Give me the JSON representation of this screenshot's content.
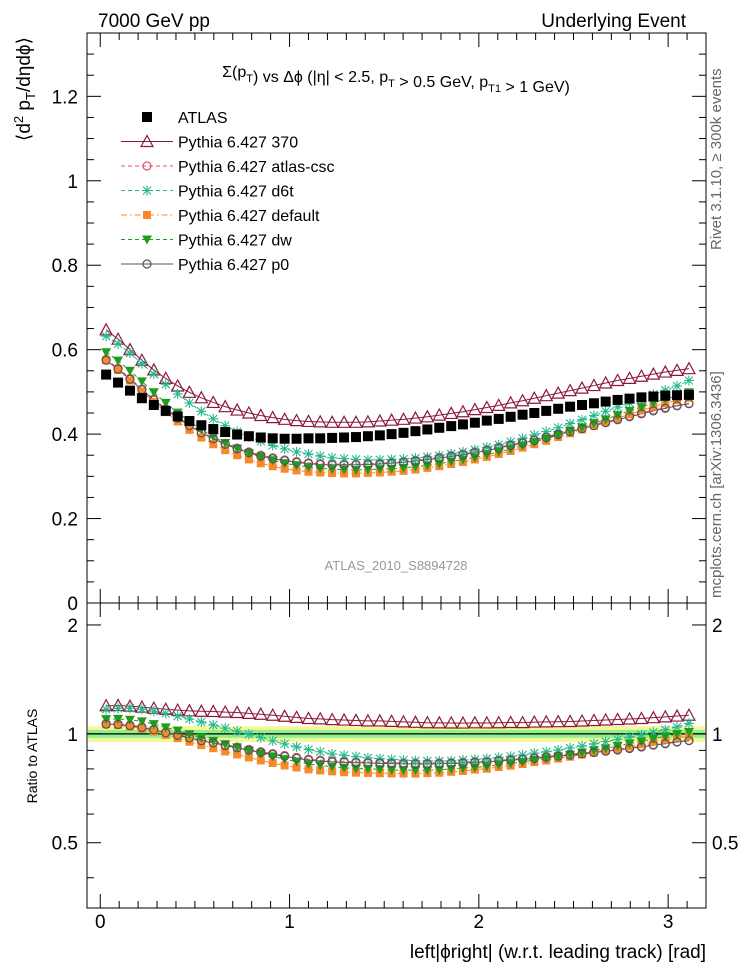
{
  "header": {
    "left": "7000 GeV pp",
    "right": "Underlying Event"
  },
  "side": {
    "rivet": "Rivet 3.1.10, ≥ 300k events",
    "mcplots": "mcplots.cern.ch [arXiv:1306.3436]"
  },
  "chart_data": {
    "type": "scatter",
    "title": "Σ(p_T) vs Δϕ (|η| < 2.5, p_T > 0.5 GeV, p_T1 > 1 GeV)",
    "analysis": "ATLAS_2010_S8894728",
    "xlabel": "left|ϕright| (w.r.t. leading track) [rad]",
    "ylabel": "⟨d² p_T/dηdϕ⟩",
    "ratio_ylabel": "Ratio to ATLAS",
    "xlim": [
      -0.07,
      3.2
    ],
    "ylim": [
      0,
      1.35
    ],
    "ratio_ylim": [
      0.33,
      2.3
    ],
    "x_ticks": [
      "0",
      "1",
      "2",
      "3"
    ],
    "y_ticks": [
      "0",
      "0.2",
      "0.4",
      "0.6",
      "0.8",
      "1",
      "1.2"
    ],
    "ratio_ticks": [
      "0.5",
      "1",
      "2"
    ],
    "legend_position": "top-left",
    "x": [
      0.031,
      0.094,
      0.157,
      0.22,
      0.283,
      0.346,
      0.409,
      0.471,
      0.534,
      0.597,
      0.66,
      0.723,
      0.785,
      0.848,
      0.911,
      0.974,
      1.037,
      1.1,
      1.162,
      1.225,
      1.288,
      1.351,
      1.414,
      1.477,
      1.539,
      1.602,
      1.665,
      1.728,
      1.791,
      1.854,
      1.916,
      1.979,
      2.042,
      2.105,
      2.168,
      2.231,
      2.293,
      2.356,
      2.419,
      2.482,
      2.545,
      2.608,
      2.67,
      2.733,
      2.796,
      2.859,
      2.922,
      2.985,
      3.047,
      3.11
    ],
    "series": [
      {
        "name": "ATLAS",
        "color": "#000000",
        "marker": "square",
        "line": "none",
        "values": [
          0.541,
          0.522,
          0.503,
          0.485,
          0.469,
          0.455,
          0.442,
          0.431,
          0.421,
          0.412,
          0.405,
          0.399,
          0.395,
          0.392,
          0.39,
          0.389,
          0.389,
          0.39,
          0.39,
          0.391,
          0.392,
          0.393,
          0.395,
          0.397,
          0.4,
          0.403,
          0.407,
          0.411,
          0.415,
          0.419,
          0.423,
          0.427,
          0.432,
          0.436,
          0.441,
          0.446,
          0.45,
          0.455,
          0.46,
          0.465,
          0.469,
          0.473,
          0.477,
          0.481,
          0.484,
          0.487,
          0.489,
          0.491,
          0.492,
          0.493
        ]
      },
      {
        "name": "Pythia 6.427 370",
        "color": "#8b1a3a",
        "marker": "triangle-open",
        "line": "solid",
        "values": [
          0.647,
          0.625,
          0.6,
          0.575,
          0.552,
          0.532,
          0.514,
          0.499,
          0.486,
          0.475,
          0.465,
          0.457,
          0.45,
          0.444,
          0.439,
          0.435,
          0.432,
          0.43,
          0.429,
          0.428,
          0.428,
          0.428,
          0.429,
          0.431,
          0.433,
          0.435,
          0.438,
          0.441,
          0.445,
          0.449,
          0.453,
          0.458,
          0.463,
          0.468,
          0.474,
          0.479,
          0.485,
          0.491,
          0.497,
          0.503,
          0.509,
          0.515,
          0.521,
          0.527,
          0.532,
          0.537,
          0.542,
          0.547,
          0.551,
          0.555
        ]
      },
      {
        "name": "Pythia 6.427 atlas-csc",
        "color": "#e8506e",
        "marker": "circle-open",
        "line": "dashed",
        "values": [
          0.577,
          0.556,
          0.532,
          0.507,
          0.483,
          0.46,
          0.44,
          0.422,
          0.405,
          0.391,
          0.378,
          0.367,
          0.358,
          0.35,
          0.344,
          0.339,
          0.335,
          0.332,
          0.33,
          0.329,
          0.329,
          0.329,
          0.33,
          0.331,
          0.333,
          0.335,
          0.338,
          0.341,
          0.345,
          0.349,
          0.353,
          0.358,
          0.363,
          0.369,
          0.375,
          0.381,
          0.387,
          0.394,
          0.401,
          0.408,
          0.415,
          0.422,
          0.429,
          0.436,
          0.443,
          0.45,
          0.457,
          0.463,
          0.468,
          0.473
        ]
      },
      {
        "name": "Pythia 6.427 d6t",
        "color": "#26b88e",
        "marker": "star",
        "line": "dashed",
        "values": [
          0.632,
          0.614,
          0.592,
          0.567,
          0.542,
          0.518,
          0.495,
          0.474,
          0.454,
          0.436,
          0.42,
          0.406,
          0.394,
          0.383,
          0.373,
          0.365,
          0.358,
          0.353,
          0.348,
          0.344,
          0.342,
          0.34,
          0.339,
          0.339,
          0.34,
          0.341,
          0.343,
          0.346,
          0.349,
          0.353,
          0.358,
          0.363,
          0.369,
          0.375,
          0.382,
          0.39,
          0.398,
          0.406,
          0.415,
          0.425,
          0.434,
          0.444,
          0.454,
          0.464,
          0.474,
          0.484,
          0.494,
          0.504,
          0.514,
          0.527
        ]
      },
      {
        "name": "Pythia 6.427 default",
        "color": "#f7892a",
        "marker": "square-filled",
        "line": "dashdot",
        "values": [
          0.575,
          0.552,
          0.527,
          0.501,
          0.476,
          0.452,
          0.43,
          0.41,
          0.392,
          0.376,
          0.362,
          0.35,
          0.34,
          0.331,
          0.324,
          0.318,
          0.314,
          0.311,
          0.309,
          0.308,
          0.307,
          0.307,
          0.308,
          0.309,
          0.311,
          0.313,
          0.316,
          0.32,
          0.324,
          0.329,
          0.334,
          0.34,
          0.346,
          0.353,
          0.36,
          0.368,
          0.376,
          0.384,
          0.393,
          0.402,
          0.411,
          0.42,
          0.429,
          0.438,
          0.447,
          0.456,
          0.465,
          0.473,
          0.48,
          0.486
        ]
      },
      {
        "name": "Pythia 6.427 dw",
        "color": "#1e9e1e",
        "marker": "triangle-down",
        "line": "dashed",
        "values": [
          0.594,
          0.574,
          0.55,
          0.525,
          0.499,
          0.474,
          0.451,
          0.43,
          0.411,
          0.394,
          0.379,
          0.366,
          0.355,
          0.346,
          0.338,
          0.331,
          0.326,
          0.322,
          0.319,
          0.317,
          0.316,
          0.315,
          0.316,
          0.317,
          0.318,
          0.32,
          0.323,
          0.326,
          0.33,
          0.335,
          0.34,
          0.345,
          0.351,
          0.358,
          0.365,
          0.373,
          0.381,
          0.389,
          0.398,
          0.407,
          0.416,
          0.426,
          0.435,
          0.445,
          0.455,
          0.464,
          0.474,
          0.483,
          0.491,
          0.499
        ]
      },
      {
        "name": "Pythia 6.427 p0",
        "color": "#555555",
        "marker": "circle-open",
        "line": "solid",
        "values": [
          0.575,
          0.554,
          0.53,
          0.505,
          0.481,
          0.458,
          0.438,
          0.42,
          0.403,
          0.389,
          0.376,
          0.365,
          0.356,
          0.348,
          0.342,
          0.337,
          0.333,
          0.33,
          0.328,
          0.327,
          0.327,
          0.327,
          0.328,
          0.329,
          0.331,
          0.333,
          0.336,
          0.339,
          0.343,
          0.347,
          0.351,
          0.356,
          0.361,
          0.367,
          0.373,
          0.379,
          0.385,
          0.392,
          0.399,
          0.406,
          0.413,
          0.42,
          0.427,
          0.434,
          0.441,
          0.448,
          0.455,
          0.461,
          0.467,
          0.472
        ]
      }
    ]
  }
}
